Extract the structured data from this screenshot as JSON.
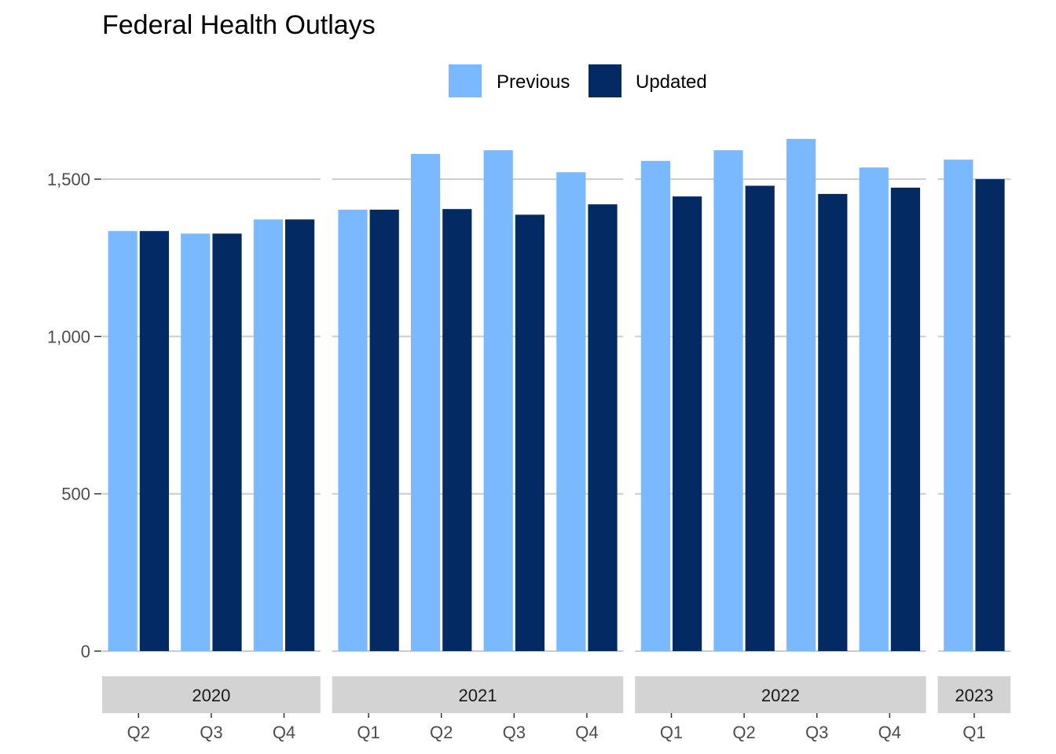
{
  "chart_data": {
    "type": "bar",
    "title": "Federal Health Outlays",
    "xlabel": "",
    "ylabel": "",
    "ylim": [
      0,
      1650
    ],
    "yticks": [
      0,
      500,
      1000,
      1500
    ],
    "ytick_labels": [
      "0",
      "500",
      "1,000",
      "1,500"
    ],
    "grid": true,
    "legend_position": "top",
    "legend": [
      {
        "name": "Previous",
        "color": "#7ab8ff"
      },
      {
        "name": "Updated",
        "color": "#042a63"
      }
    ],
    "facets": [
      {
        "year": "2020",
        "quarters": [
          "Q2",
          "Q3",
          "Q4"
        ],
        "previous": [
          1335,
          1327,
          1372
        ],
        "updated": [
          1335,
          1327,
          1372
        ]
      },
      {
        "year": "2021",
        "quarters": [
          "Q1",
          "Q2",
          "Q3",
          "Q4"
        ],
        "previous": [
          1403,
          1580,
          1592,
          1522
        ],
        "updated": [
          1403,
          1405,
          1387,
          1420
        ]
      },
      {
        "year": "2022",
        "quarters": [
          "Q1",
          "Q2",
          "Q3",
          "Q4"
        ],
        "previous": [
          1558,
          1592,
          1628,
          1537
        ],
        "updated": [
          1445,
          1479,
          1453,
          1473
        ]
      },
      {
        "year": "2023",
        "quarters": [
          "Q1"
        ],
        "previous": [
          1562
        ],
        "updated": [
          1500
        ]
      }
    ]
  }
}
